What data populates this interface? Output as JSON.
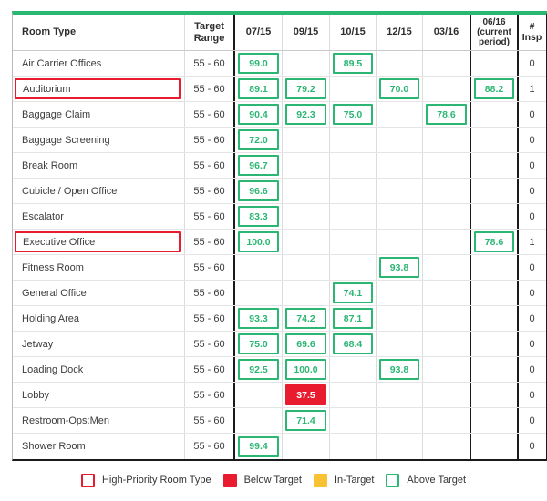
{
  "table": {
    "columns": [
      "Room Type",
      "Target Range",
      "07/15",
      "09/15",
      "10/15",
      "12/15",
      "03/16",
      "06/16 (current period)",
      "# Insp"
    ],
    "rows": [
      {
        "room": "Air Carrier Offices",
        "high_priority": false,
        "target_range": "55 - 60",
        "cells": [
          {
            "v": "99.0",
            "s": "above"
          },
          {
            "v": "",
            "s": ""
          },
          {
            "v": "89.5",
            "s": "above"
          },
          {
            "v": "",
            "s": ""
          },
          {
            "v": "",
            "s": ""
          },
          {
            "v": "",
            "s": ""
          }
        ],
        "insp": "0"
      },
      {
        "room": "Auditorium",
        "high_priority": true,
        "target_range": "55 - 60",
        "cells": [
          {
            "v": "89.1",
            "s": "above"
          },
          {
            "v": "79.2",
            "s": "above"
          },
          {
            "v": "",
            "s": ""
          },
          {
            "v": "70.0",
            "s": "above"
          },
          {
            "v": "",
            "s": ""
          },
          {
            "v": "88.2",
            "s": "above"
          }
        ],
        "insp": "1"
      },
      {
        "room": "Baggage Claim",
        "high_priority": false,
        "target_range": "55 - 60",
        "cells": [
          {
            "v": "90.4",
            "s": "above"
          },
          {
            "v": "92.3",
            "s": "above"
          },
          {
            "v": "75.0",
            "s": "above"
          },
          {
            "v": "",
            "s": ""
          },
          {
            "v": "78.6",
            "s": "above"
          },
          {
            "v": "",
            "s": ""
          }
        ],
        "insp": "0"
      },
      {
        "room": "Baggage Screening",
        "high_priority": false,
        "target_range": "55 - 60",
        "cells": [
          {
            "v": "72.0",
            "s": "above"
          },
          {
            "v": "",
            "s": ""
          },
          {
            "v": "",
            "s": ""
          },
          {
            "v": "",
            "s": ""
          },
          {
            "v": "",
            "s": ""
          },
          {
            "v": "",
            "s": ""
          }
        ],
        "insp": "0"
      },
      {
        "room": "Break Room",
        "high_priority": false,
        "target_range": "55 - 60",
        "cells": [
          {
            "v": "96.7",
            "s": "above"
          },
          {
            "v": "",
            "s": ""
          },
          {
            "v": "",
            "s": ""
          },
          {
            "v": "",
            "s": ""
          },
          {
            "v": "",
            "s": ""
          },
          {
            "v": "",
            "s": ""
          }
        ],
        "insp": "0"
      },
      {
        "room": "Cubicle / Open Office",
        "high_priority": false,
        "target_range": "55 - 60",
        "cells": [
          {
            "v": "96.6",
            "s": "above"
          },
          {
            "v": "",
            "s": ""
          },
          {
            "v": "",
            "s": ""
          },
          {
            "v": "",
            "s": ""
          },
          {
            "v": "",
            "s": ""
          },
          {
            "v": "",
            "s": ""
          }
        ],
        "insp": "0"
      },
      {
        "room": "Escalator",
        "high_priority": false,
        "target_range": "55 - 60",
        "cells": [
          {
            "v": "83.3",
            "s": "above"
          },
          {
            "v": "",
            "s": ""
          },
          {
            "v": "",
            "s": ""
          },
          {
            "v": "",
            "s": ""
          },
          {
            "v": "",
            "s": ""
          },
          {
            "v": "",
            "s": ""
          }
        ],
        "insp": "0"
      },
      {
        "room": "Executive Office",
        "high_priority": true,
        "target_range": "55 - 60",
        "cells": [
          {
            "v": "100.0",
            "s": "above"
          },
          {
            "v": "",
            "s": ""
          },
          {
            "v": "",
            "s": ""
          },
          {
            "v": "",
            "s": ""
          },
          {
            "v": "",
            "s": ""
          },
          {
            "v": "78.6",
            "s": "above"
          }
        ],
        "insp": "1"
      },
      {
        "room": "Fitness Room",
        "high_priority": false,
        "target_range": "55 - 60",
        "cells": [
          {
            "v": "",
            "s": ""
          },
          {
            "v": "",
            "s": ""
          },
          {
            "v": "",
            "s": ""
          },
          {
            "v": "93.8",
            "s": "above"
          },
          {
            "v": "",
            "s": ""
          },
          {
            "v": "",
            "s": ""
          }
        ],
        "insp": "0"
      },
      {
        "room": "General Office",
        "high_priority": false,
        "target_range": "55 - 60",
        "cells": [
          {
            "v": "",
            "s": ""
          },
          {
            "v": "",
            "s": ""
          },
          {
            "v": "74.1",
            "s": "above"
          },
          {
            "v": "",
            "s": ""
          },
          {
            "v": "",
            "s": ""
          },
          {
            "v": "",
            "s": ""
          }
        ],
        "insp": "0"
      },
      {
        "room": "Holding Area",
        "high_priority": false,
        "target_range": "55 - 60",
        "cells": [
          {
            "v": "93.3",
            "s": "above"
          },
          {
            "v": "74.2",
            "s": "above"
          },
          {
            "v": "87.1",
            "s": "above"
          },
          {
            "v": "",
            "s": ""
          },
          {
            "v": "",
            "s": ""
          },
          {
            "v": "",
            "s": ""
          }
        ],
        "insp": "0"
      },
      {
        "room": "Jetway",
        "high_priority": false,
        "target_range": "55 - 60",
        "cells": [
          {
            "v": "75.0",
            "s": "above"
          },
          {
            "v": "69.6",
            "s": "above"
          },
          {
            "v": "68.4",
            "s": "above"
          },
          {
            "v": "",
            "s": ""
          },
          {
            "v": "",
            "s": ""
          },
          {
            "v": "",
            "s": ""
          }
        ],
        "insp": "0"
      },
      {
        "room": "Loading Dock",
        "high_priority": false,
        "target_range": "55 - 60",
        "cells": [
          {
            "v": "92.5",
            "s": "above"
          },
          {
            "v": "100.0",
            "s": "above"
          },
          {
            "v": "",
            "s": ""
          },
          {
            "v": "93.8",
            "s": "above"
          },
          {
            "v": "",
            "s": ""
          },
          {
            "v": "",
            "s": ""
          }
        ],
        "insp": "0"
      },
      {
        "room": "Lobby",
        "high_priority": false,
        "target_range": "55 - 60",
        "cells": [
          {
            "v": "",
            "s": ""
          },
          {
            "v": "37.5",
            "s": "below"
          },
          {
            "v": "",
            "s": ""
          },
          {
            "v": "",
            "s": ""
          },
          {
            "v": "",
            "s": ""
          },
          {
            "v": "",
            "s": ""
          }
        ],
        "insp": "0"
      },
      {
        "room": "Restroom-Ops:Men",
        "high_priority": false,
        "target_range": "55 - 60",
        "cells": [
          {
            "v": "",
            "s": ""
          },
          {
            "v": "71.4",
            "s": "above"
          },
          {
            "v": "",
            "s": ""
          },
          {
            "v": "",
            "s": ""
          },
          {
            "v": "",
            "s": ""
          },
          {
            "v": "",
            "s": ""
          }
        ],
        "insp": "0"
      },
      {
        "room": "Shower Room",
        "high_priority": false,
        "target_range": "55 - 60",
        "cells": [
          {
            "v": "99.4",
            "s": "above"
          },
          {
            "v": "",
            "s": ""
          },
          {
            "v": "",
            "s": ""
          },
          {
            "v": "",
            "s": ""
          },
          {
            "v": "",
            "s": ""
          },
          {
            "v": "",
            "s": ""
          }
        ],
        "insp": "0"
      }
    ]
  },
  "legend": {
    "items": [
      {
        "label": "High-Priority Room Type",
        "swatch": "red-outline"
      },
      {
        "label": "Below Target",
        "swatch": "red-fill"
      },
      {
        "label": "In-Target",
        "swatch": "yellow-fill"
      },
      {
        "label": "Above Target",
        "swatch": "green-outline"
      }
    ]
  },
  "colors": {
    "above_target_green": "#2bb673",
    "below_target_red": "#e81c2e",
    "in_target_yellow": "#f9c233",
    "high_priority_red": "#e81c2e",
    "grid_line": "#dcdcdc",
    "frame_black": "#1a1a1a"
  }
}
